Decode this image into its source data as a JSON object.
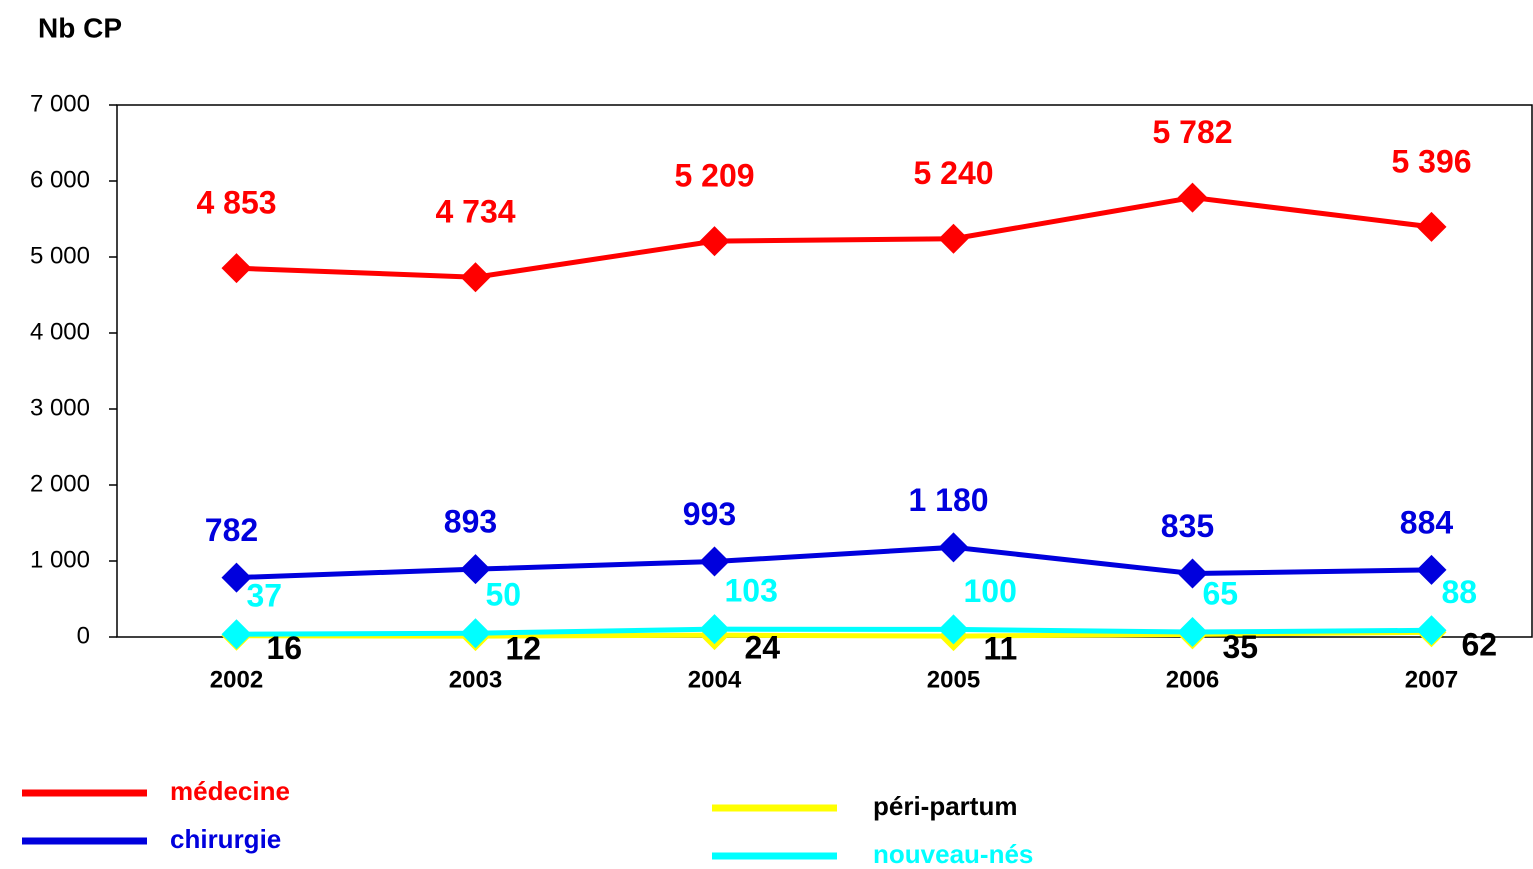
{
  "chart_data": {
    "type": "line",
    "y_label": "Nb CP",
    "categories": [
      "2002",
      "2003",
      "2004",
      "2005",
      "2006",
      "2007"
    ],
    "series": [
      {
        "name": "médecine",
        "color": "#ff0000",
        "values": [
          4853,
          4734,
          5209,
          5240,
          5782,
          5396
        ],
        "value_labels": [
          "4 853",
          "4 734",
          "5 209",
          "5 240",
          "5 782",
          "5 396"
        ]
      },
      {
        "name": "chirurgie",
        "color": "#0000dd",
        "values": [
          782,
          893,
          993,
          1180,
          835,
          884
        ],
        "value_labels": [
          "782",
          "893",
          "993",
          "1 180",
          "835",
          "884"
        ]
      },
      {
        "name": "péri-partum",
        "color": "#ffff00",
        "label_color": "#000000",
        "values": [
          16,
          12,
          24,
          11,
          35,
          62
        ]
      },
      {
        "name": "nouveau-nés",
        "color": "#00ffff",
        "values": [
          37,
          50,
          103,
          100,
          65,
          88
        ]
      }
    ],
    "ylim": [
      0,
      7000
    ],
    "yticks": [
      0,
      {
        "value": 1000,
        "label": "1 000"
      },
      {
        "value": 2000,
        "label": "2 000"
      },
      {
        "value": 3000,
        "label": "3 000"
      },
      {
        "value": 4000,
        "label": "4 000"
      },
      {
        "value": 5000,
        "label": "5 000"
      },
      {
        "value": 6000,
        "label": "6 000"
      },
      {
        "value": 7000,
        "label": "7 000"
      }
    ]
  }
}
